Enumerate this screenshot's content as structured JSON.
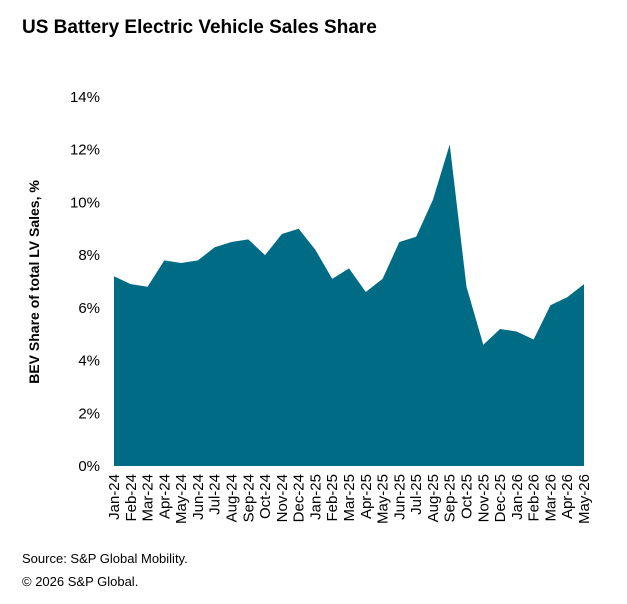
{
  "title": "US Battery Electric Vehicle Sales Share",
  "footer": {
    "source": "Source: S&P Global Mobility.",
    "copyright": "© 2026 S&P Global."
  },
  "chart_data": {
    "type": "area",
    "title": "US Battery Electric Vehicle Sales Share",
    "xlabel": "",
    "ylabel": "BEV Share of total LV Sales, %",
    "ylim": [
      0,
      14
    ],
    "yticks": [
      0,
      2,
      4,
      6,
      8,
      10,
      12,
      14
    ],
    "ytick_labels": [
      "0%",
      "2%",
      "4%",
      "6%",
      "8%",
      "10%",
      "12%",
      "14%"
    ],
    "grid": false,
    "legend": "none",
    "color": "#006B85",
    "categories": [
      "Jan-24",
      "Feb-24",
      "Mar-24",
      "Apr-24",
      "May-24",
      "Jun-24",
      "Jul-24",
      "Aug-24",
      "Sep-24",
      "Oct-24",
      "Nov-24",
      "Dec-24",
      "Jan-25",
      "Feb-25",
      "Mar-25",
      "Apr-25",
      "May-25",
      "Jun-25",
      "Jul-25",
      "Aug-25",
      "Sep-25",
      "Oct-25",
      "Nov-25",
      "Dec-25",
      "Jan-26",
      "Feb-26",
      "Mar-26",
      "Apr-26",
      "May-26"
    ],
    "values": [
      7.2,
      6.9,
      6.8,
      7.8,
      7.7,
      7.8,
      8.3,
      8.5,
      8.6,
      8.0,
      8.8,
      9.0,
      8.2,
      7.1,
      7.5,
      6.6,
      7.1,
      8.5,
      8.7,
      10.1,
      12.2,
      6.8,
      4.6,
      5.2,
      5.1,
      4.8,
      6.1,
      6.4,
      6.9
    ]
  }
}
